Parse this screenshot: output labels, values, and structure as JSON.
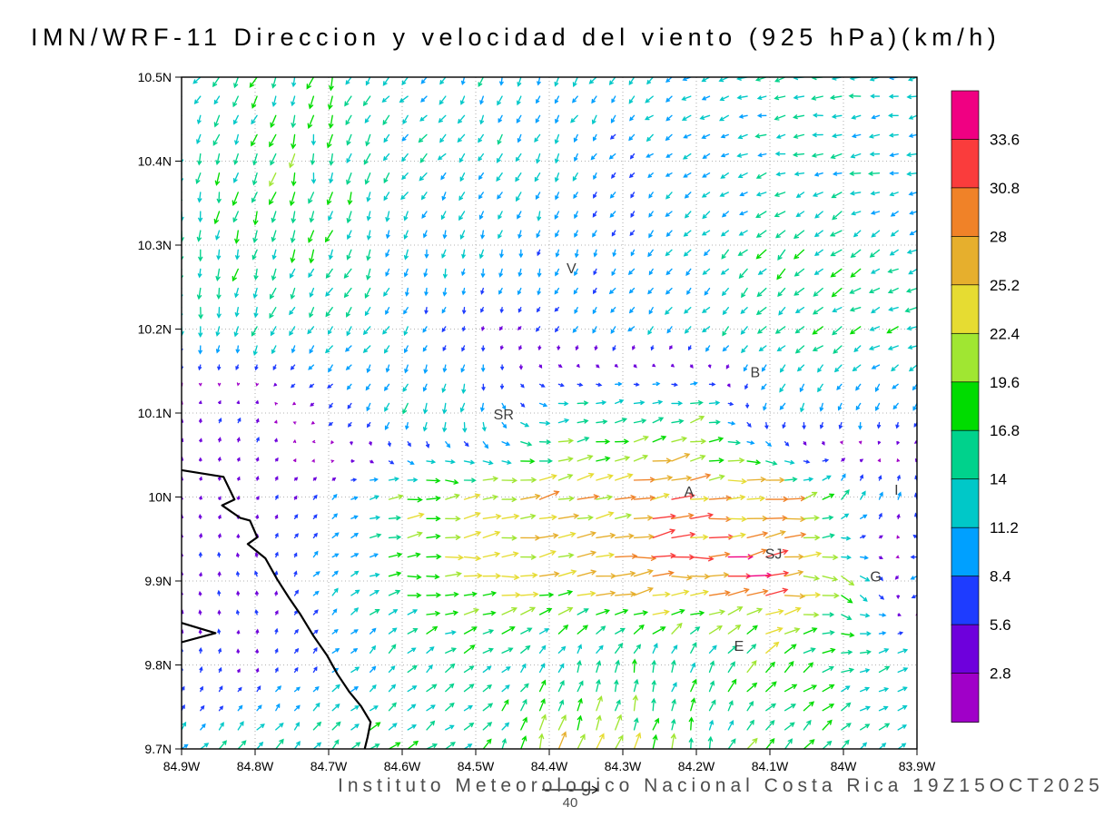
{
  "title": "IMN/WRF-11 Direccion y velocidad del viento (925 hPa)(km/h)",
  "footer": {
    "text": "Instituto Meteorologico Nacional Costa Rica 19Z15OCT2025",
    "reference_vector_label": "40"
  },
  "chart_data": {
    "type": "vector-field",
    "model": "IMN/WRF-11",
    "field": "Direccion y velocidad del viento",
    "level": "925 hPa",
    "units": "km/h",
    "valid_time": "19Z15OCT2025",
    "reference_vector_kmh": 40,
    "x_axis": {
      "range": [
        -84.9,
        -83.9
      ],
      "tick_values": [
        -84.9,
        -84.8,
        -84.7,
        -84.6,
        -84.5,
        -84.4,
        -84.3,
        -84.2,
        -84.1,
        -84.0,
        -83.9
      ],
      "tick_labels": [
        "84.9W",
        "84.8W",
        "84.7W",
        "84.6W",
        "84.5W",
        "84.4W",
        "84.3W",
        "84.2W",
        "84.1W",
        "84W",
        "83.9W"
      ]
    },
    "y_axis": {
      "range": [
        9.7,
        10.5
      ],
      "tick_values": [
        10.5,
        10.4,
        10.3,
        10.2,
        10.1,
        10.0,
        9.9,
        9.8,
        9.7
      ],
      "tick_labels": [
        "10.5N",
        "10.4N",
        "10.3N",
        "10.2N",
        "10.1N",
        "10N",
        "9.9N",
        "9.8N",
        "9.7N"
      ]
    },
    "colorbar": {
      "levels": [
        2.8,
        5.6,
        8.4,
        11.2,
        14,
        16.8,
        19.6,
        22.4,
        25.2,
        28,
        30.8,
        33.6
      ],
      "labels_desc": [
        "33.6",
        "30.8",
        "28",
        "25.2",
        "22.4",
        "19.6",
        "16.8",
        "14",
        "11.2",
        "8.4",
        "5.6",
        "2.8"
      ],
      "colors_asc": [
        "#A000C8",
        "#6E00DC",
        "#1E3CFF",
        "#00A0FF",
        "#00C8C8",
        "#00D28C",
        "#00DC00",
        "#A0E632",
        "#E6DC32",
        "#E6AF2D",
        "#F08228",
        "#FA3C3C",
        "#F00082"
      ]
    },
    "stations": [
      {
        "label": "V",
        "lon": -84.37,
        "lat": 10.272
      },
      {
        "label": "B",
        "lon": -84.12,
        "lat": 10.148
      },
      {
        "label": "SR",
        "lon": -84.462,
        "lat": 10.098
      },
      {
        "label": "A",
        "lon": -84.21,
        "lat": 10.006
      },
      {
        "label": "SJ",
        "lon": -84.095,
        "lat": 9.932
      },
      {
        "label": "G",
        "lon": -83.956,
        "lat": 9.905
      },
      {
        "label": "E",
        "lon": -84.142,
        "lat": 9.822
      },
      {
        "label": "I",
        "lon": -83.928,
        "lat": 10.008
      }
    ],
    "coastline_segments": [
      [
        [
          -84.9,
          10.032
        ],
        [
          -84.843,
          10.024
        ],
        [
          -84.828,
          9.997
        ],
        [
          -84.845,
          9.99
        ],
        [
          -84.82,
          9.975
        ],
        [
          -84.807,
          9.972
        ],
        [
          -84.797,
          9.952
        ],
        [
          -84.81,
          9.944
        ],
        [
          -84.786,
          9.927
        ],
        [
          -84.77,
          9.902
        ],
        [
          -84.754,
          9.88
        ],
        [
          -84.739,
          9.861
        ],
        [
          -84.721,
          9.835
        ],
        [
          -84.702,
          9.811
        ],
        [
          -84.688,
          9.789
        ],
        [
          -84.672,
          9.768
        ],
        [
          -84.656,
          9.751
        ],
        [
          -84.643,
          9.732
        ],
        [
          -84.647,
          9.714
        ],
        [
          -84.651,
          9.7
        ]
      ],
      [
        [
          -84.9,
          9.85
        ],
        [
          -84.854,
          9.838
        ],
        [
          -84.9,
          9.827
        ]
      ]
    ],
    "wind_grid": {
      "lons": [
        -84.9,
        -84.8,
        -84.7,
        -84.6,
        -84.5,
        -84.4,
        -84.3,
        -84.2,
        -84.1,
        -84.0,
        -83.9
      ],
      "lats": [
        9.7,
        9.8,
        9.9,
        10.0,
        10.1,
        10.2,
        10.3,
        10.4,
        10.5
      ],
      "u_kmh": [
        [
          8,
          10,
          11,
          13,
          10,
          4,
          8,
          3,
          13,
          10,
          13
        ],
        [
          0,
          1,
          7,
          10,
          13,
          6,
          3,
          6,
          14,
          14,
          13
        ],
        [
          1,
          -2,
          8,
          16,
          23,
          24,
          28,
          30,
          31,
          16,
          -10
        ],
        [
          0,
          2,
          5,
          20,
          23,
          24,
          26,
          27,
          28,
          8,
          0
        ],
        [
          1,
          2,
          -5,
          -6,
          -3,
          14,
          15,
          18,
          -5,
          -2,
          -4
        ],
        [
          -1,
          -5,
          -8,
          -5,
          -1,
          -5,
          -7,
          -8,
          -10,
          -13,
          -15
        ],
        [
          -2,
          -3,
          -7,
          -3,
          -2,
          -2,
          -4,
          -8,
          -11,
          -12,
          -10
        ],
        [
          -3,
          -6,
          -2,
          -9,
          -8,
          -6,
          -6,
          -10,
          -12,
          -13,
          -12
        ],
        [
          -8,
          -6,
          -5,
          -9,
          -3,
          -5,
          -8,
          -11,
          -13,
          -13,
          -12
        ]
      ],
      "v_kmh": [
        [
          8,
          10,
          11,
          8,
          10,
          22,
          20,
          16,
          13,
          10,
          4
        ],
        [
          6,
          4,
          7,
          10,
          7,
          13,
          15,
          14,
          14,
          4,
          5
        ],
        [
          5,
          6,
          7,
          2,
          2,
          3,
          2,
          2,
          6,
          -10,
          -4
        ],
        [
          4,
          4,
          5,
          3,
          3,
          6,
          6,
          4,
          2,
          12,
          10
        ],
        [
          4,
          6,
          -5,
          -12,
          -13,
          1,
          4,
          5,
          -9,
          -10,
          -9
        ],
        [
          -12,
          -15,
          -10,
          -10,
          -4,
          -6,
          -8,
          -8,
          -10,
          -7,
          -4
        ],
        [
          -12,
          -16,
          -14,
          -11,
          -12,
          -9,
          -8,
          -8,
          -11,
          -10,
          -6
        ],
        [
          -15,
          -16,
          -17,
          -10,
          -9,
          -11,
          -6,
          -5,
          -2,
          -2,
          -1
        ],
        [
          -8,
          -14,
          -15,
          -9,
          -12,
          -11,
          -9,
          -6,
          -3,
          -2,
          -3
        ]
      ]
    }
  }
}
